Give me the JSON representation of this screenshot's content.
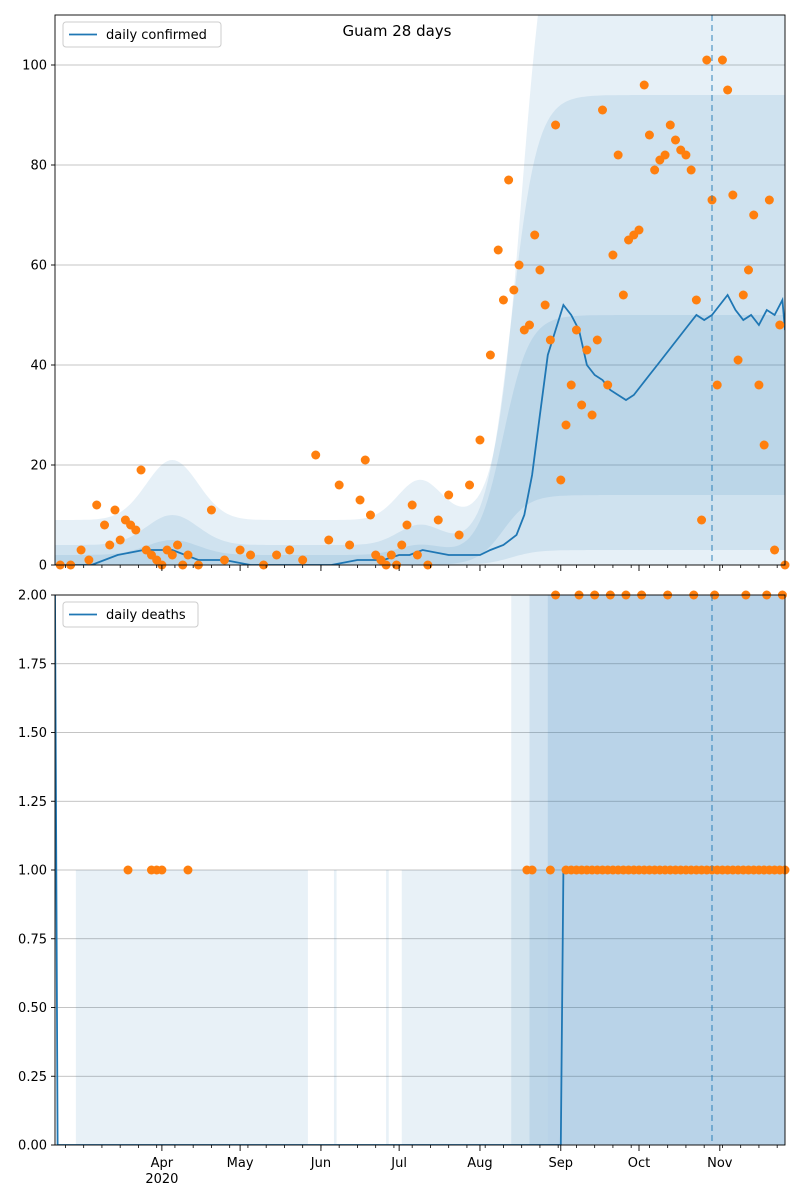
{
  "chart_data": [
    {
      "type": "line",
      "title": "Guam 28 days",
      "xlabel": "",
      "ylabel": "",
      "x_start": "2020-02-20",
      "x_end": "2020-11-26",
      "ylim": [
        0,
        110
      ],
      "y_ticks": [
        0,
        20,
        40,
        60,
        80,
        100
      ],
      "y_tick_labels": [
        "0",
        "20",
        "40",
        "60",
        "80",
        "100"
      ],
      "grid": "horizontal",
      "legend": "top-left",
      "projection_start": "2020-10-29",
      "series": [
        {
          "name": "daily confirmed",
          "kind": "line",
          "color": "#1f77b4",
          "x": [
            "2020-02-20",
            "2020-03-05",
            "2020-03-15",
            "2020-03-25",
            "2020-04-05",
            "2020-04-15",
            "2020-04-25",
            "2020-05-05",
            "2020-05-15",
            "2020-05-25",
            "2020-06-05",
            "2020-06-15",
            "2020-06-25",
            "2020-07-01",
            "2020-07-05",
            "2020-07-10",
            "2020-07-20",
            "2020-07-25",
            "2020-08-01",
            "2020-08-05",
            "2020-08-10",
            "2020-08-15",
            "2020-08-18",
            "2020-08-21",
            "2020-08-24",
            "2020-08-27",
            "2020-08-30",
            "2020-09-02",
            "2020-09-05",
            "2020-09-08",
            "2020-09-11",
            "2020-09-14",
            "2020-09-17",
            "2020-09-20",
            "2020-09-23",
            "2020-09-26",
            "2020-09-29",
            "2020-10-02",
            "2020-10-05",
            "2020-10-08",
            "2020-10-11",
            "2020-10-14",
            "2020-10-17",
            "2020-10-20",
            "2020-10-23",
            "2020-10-26",
            "2020-10-29",
            "2020-11-01",
            "2020-11-04",
            "2020-11-07",
            "2020-11-10",
            "2020-11-13",
            "2020-11-16",
            "2020-11-19",
            "2020-11-22",
            "2020-11-25",
            "2020-11-26"
          ],
          "y": [
            0,
            0,
            2,
            3,
            3,
            1,
            1,
            0,
            0,
            0,
            0,
            1,
            1,
            2,
            2,
            3,
            2,
            2,
            2,
            3,
            4,
            6,
            10,
            18,
            30,
            42,
            47,
            52,
            50,
            47,
            40,
            38,
            37,
            35,
            34,
            33,
            34,
            36,
            38,
            40,
            42,
            44,
            46,
            48,
            50,
            49,
            50,
            52,
            54,
            51,
            49,
            50,
            48,
            51,
            50,
            53,
            47
          ]
        },
        {
          "name": "",
          "kind": "scatter",
          "color": "#ff7f0e",
          "x": [
            "2020-02-22",
            "2020-02-26",
            "2020-03-01",
            "2020-03-04",
            "2020-03-07",
            "2020-03-10",
            "2020-03-12",
            "2020-03-14",
            "2020-03-16",
            "2020-03-18",
            "2020-03-20",
            "2020-03-22",
            "2020-03-24",
            "2020-03-26",
            "2020-03-28",
            "2020-03-30",
            "2020-04-01",
            "2020-04-03",
            "2020-04-05",
            "2020-04-07",
            "2020-04-09",
            "2020-04-11",
            "2020-04-15",
            "2020-04-20",
            "2020-04-25",
            "2020-05-01",
            "2020-05-05",
            "2020-05-10",
            "2020-05-15",
            "2020-05-20",
            "2020-05-25",
            "2020-05-30",
            "2020-06-04",
            "2020-06-08",
            "2020-06-12",
            "2020-06-16",
            "2020-06-18",
            "2020-06-20",
            "2020-06-22",
            "2020-06-24",
            "2020-06-26",
            "2020-06-28",
            "2020-06-30",
            "2020-07-02",
            "2020-07-04",
            "2020-07-06",
            "2020-07-08",
            "2020-07-12",
            "2020-07-16",
            "2020-07-20",
            "2020-07-24",
            "2020-07-28",
            "2020-08-01",
            "2020-08-05",
            "2020-08-08",
            "2020-08-10",
            "2020-08-12",
            "2020-08-14",
            "2020-08-16",
            "2020-08-18",
            "2020-08-20",
            "2020-08-22",
            "2020-08-24",
            "2020-08-26",
            "2020-08-28",
            "2020-08-30",
            "2020-09-01",
            "2020-09-03",
            "2020-09-05",
            "2020-09-07",
            "2020-09-09",
            "2020-09-11",
            "2020-09-13",
            "2020-09-15",
            "2020-09-17",
            "2020-09-19",
            "2020-09-21",
            "2020-09-23",
            "2020-09-25",
            "2020-09-27",
            "2020-09-29",
            "2020-10-01",
            "2020-10-03",
            "2020-10-05",
            "2020-10-07",
            "2020-10-09",
            "2020-10-11",
            "2020-10-13",
            "2020-10-15",
            "2020-10-17",
            "2020-10-19",
            "2020-10-21",
            "2020-10-23",
            "2020-10-25",
            "2020-10-27",
            "2020-10-29",
            "2020-10-31",
            "2020-11-02",
            "2020-11-04",
            "2020-11-06",
            "2020-11-08",
            "2020-11-10",
            "2020-11-12",
            "2020-11-14",
            "2020-11-16",
            "2020-11-18",
            "2020-11-20",
            "2020-11-22",
            "2020-11-24",
            "2020-11-26"
          ],
          "y": [
            0,
            0,
            3,
            1,
            12,
            8,
            4,
            11,
            5,
            9,
            8,
            7,
            19,
            3,
            2,
            1,
            0,
            3,
            2,
            4,
            0,
            2,
            0,
            11,
            1,
            3,
            2,
            0,
            2,
            3,
            1,
            22,
            5,
            16,
            4,
            13,
            21,
            10,
            2,
            1,
            0,
            2,
            0,
            4,
            8,
            12,
            2,
            0,
            9,
            14,
            6,
            16,
            25,
            42,
            63,
            53,
            77,
            55,
            60,
            47,
            48,
            66,
            59,
            52,
            45,
            88,
            17,
            28,
            36,
            47,
            32,
            43,
            30,
            45,
            91,
            36,
            62,
            82,
            54,
            65,
            66,
            67,
            96,
            86,
            79,
            81,
            82,
            88,
            85,
            83,
            82,
            79,
            53,
            9,
            101,
            73,
            36,
            101,
            95,
            74,
            41,
            54,
            59,
            70,
            36,
            24,
            73,
            3,
            48,
            0
          ]
        }
      ]
    },
    {
      "type": "line",
      "title": "",
      "xlabel": "",
      "ylabel": "",
      "x_start": "2020-02-20",
      "x_end": "2020-11-26",
      "ylim": [
        0,
        2
      ],
      "y_ticks": [
        0,
        0.25,
        0.5,
        0.75,
        1,
        1.25,
        1.5,
        1.75,
        2
      ],
      "y_tick_labels": [
        "0.00",
        "0.25",
        "0.50",
        "0.75",
        "1.00",
        "1.25",
        "1.50",
        "1.75",
        "2.00"
      ],
      "grid": "horizontal",
      "legend": "top-left",
      "projection_start": "2020-10-29",
      "x_tick_labels": [
        "Apr",
        "May",
        "Jun",
        "Jul",
        "Aug",
        "Sep",
        "Oct",
        "Nov"
      ],
      "x_tick_dates": [
        "2020-04-01",
        "2020-05-01",
        "2020-06-01",
        "2020-07-01",
        "2020-08-01",
        "2020-09-01",
        "2020-10-01",
        "2020-11-01"
      ],
      "x_year_label": "2020",
      "series": [
        {
          "name": "daily deaths",
          "kind": "line",
          "color": "#1f77b4",
          "x": [
            "2020-02-20",
            "2020-02-21",
            "2020-09-01",
            "2020-09-02",
            "2020-11-26"
          ],
          "y": [
            2,
            0,
            0,
            1,
            1
          ]
        },
        {
          "name": "",
          "kind": "scatter",
          "color": "#ff7f0e",
          "x": [
            "2020-03-19",
            "2020-03-28",
            "2020-03-30",
            "2020-04-01",
            "2020-04-11",
            "2020-08-19",
            "2020-08-21",
            "2020-08-28",
            "2020-09-03",
            "2020-09-05",
            "2020-09-07",
            "2020-09-09",
            "2020-09-11",
            "2020-09-13",
            "2020-09-15",
            "2020-09-17",
            "2020-09-19",
            "2020-09-21",
            "2020-09-23",
            "2020-09-25",
            "2020-09-27",
            "2020-09-29",
            "2020-10-01",
            "2020-10-03",
            "2020-10-05",
            "2020-10-07",
            "2020-10-09",
            "2020-10-11",
            "2020-10-13",
            "2020-10-15",
            "2020-10-17",
            "2020-10-19",
            "2020-10-21",
            "2020-10-23",
            "2020-10-25",
            "2020-10-27",
            "2020-10-29",
            "2020-10-31",
            "2020-11-02",
            "2020-11-04",
            "2020-11-06",
            "2020-11-08",
            "2020-11-10",
            "2020-11-12",
            "2020-11-14",
            "2020-11-16",
            "2020-11-18",
            "2020-11-20",
            "2020-11-22",
            "2020-11-24",
            "2020-11-26",
            "2020-08-30",
            "2020-09-08",
            "2020-09-14",
            "2020-09-20",
            "2020-09-26",
            "2020-10-02",
            "2020-10-12",
            "2020-10-22",
            "2020-10-30",
            "2020-11-11",
            "2020-11-19",
            "2020-11-25"
          ],
          "y": [
            1,
            1,
            1,
            1,
            1,
            1,
            1,
            1,
            1,
            1,
            1,
            1,
            1,
            1,
            1,
            1,
            1,
            1,
            1,
            1,
            1,
            1,
            1,
            1,
            1,
            1,
            1,
            1,
            1,
            1,
            1,
            1,
            1,
            1,
            1,
            1,
            1,
            1,
            1,
            1,
            1,
            1,
            1,
            1,
            1,
            1,
            1,
            1,
            1,
            1,
            1,
            2,
            2,
            2,
            2,
            2,
            2,
            2,
            2,
            2,
            2,
            2,
            2
          ]
        }
      ]
    }
  ]
}
